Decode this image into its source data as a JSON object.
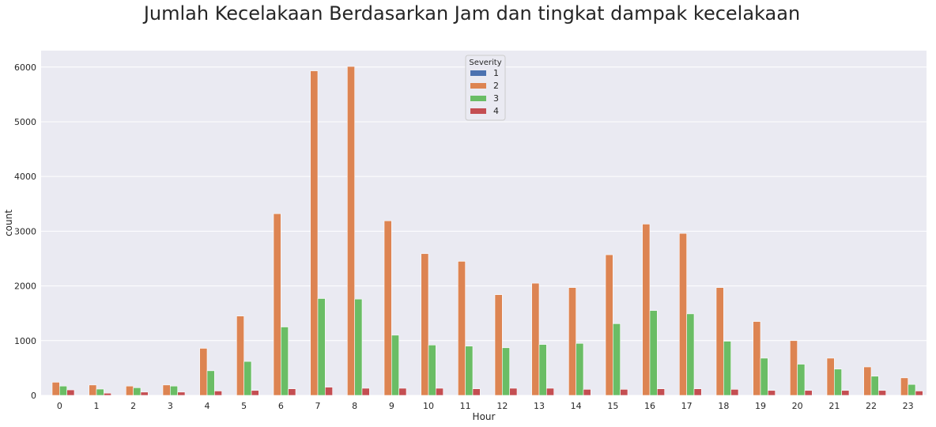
{
  "chart_data": {
    "type": "bar",
    "title": "Jumlah Kecelakaan Berdasarkan Jam dan tingkat dampak kecelakaan",
    "xlabel": "Hour",
    "ylabel": "count",
    "ylim": [
      0,
      6300
    ],
    "yticks": [
      0,
      1000,
      2000,
      3000,
      4000,
      5000,
      6000
    ],
    "grid": true,
    "legend_position": "top-center",
    "legend_title": "Severity",
    "categories": [
      "0",
      "1",
      "2",
      "3",
      "4",
      "5",
      "6",
      "7",
      "8",
      "9",
      "10",
      "11",
      "12",
      "13",
      "14",
      "15",
      "16",
      "17",
      "18",
      "19",
      "20",
      "21",
      "22",
      "23"
    ],
    "series": [
      {
        "name": "1",
        "color": "#4c72b0",
        "values": [
          0,
          0,
          0,
          0,
          0,
          0,
          0,
          0,
          0,
          0,
          0,
          0,
          0,
          0,
          0,
          0,
          0,
          0,
          0,
          0,
          0,
          0,
          0,
          0
        ]
      },
      {
        "name": "2",
        "color": "#dd8452",
        "values": [
          240,
          190,
          170,
          190,
          860,
          1450,
          3320,
          5930,
          6010,
          3190,
          2590,
          2450,
          1840,
          2050,
          1970,
          2570,
          3130,
          2960,
          1970,
          1350,
          1000,
          680,
          520,
          320
        ]
      },
      {
        "name": "3",
        "color": "#6abd65",
        "values": [
          170,
          115,
          140,
          170,
          450,
          620,
          1250,
          1770,
          1760,
          1100,
          920,
          900,
          870,
          930,
          950,
          1310,
          1550,
          1490,
          990,
          680,
          570,
          480,
          350,
          200
        ]
      },
      {
        "name": "4",
        "color": "#c44e52",
        "values": [
          100,
          40,
          60,
          60,
          80,
          90,
          120,
          150,
          130,
          130,
          130,
          120,
          130,
          130,
          110,
          110,
          120,
          120,
          110,
          90,
          90,
          90,
          90,
          80
        ]
      }
    ]
  }
}
